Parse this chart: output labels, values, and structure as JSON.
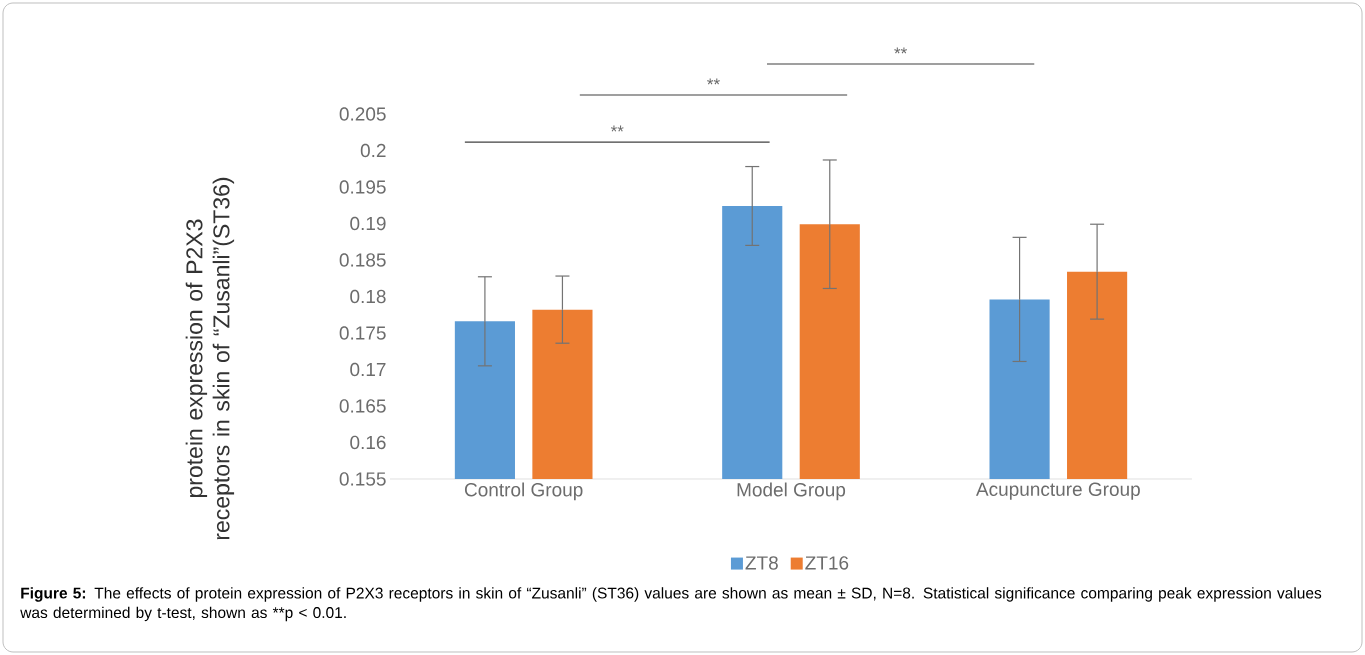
{
  "chart_data": {
    "type": "bar",
    "ylabel": "protein expression of P2X3 receptors in skin of “Zusanli”(ST36)",
    "categories": [
      "Control Group",
      "Model Group",
      "Acupuncture Group"
    ],
    "series": [
      {
        "name": "ZT8",
        "color": "#5b9bd5",
        "values": [
          0.1766,
          0.1924,
          0.1796
        ],
        "errors": [
          0.0061,
          0.0054,
          0.0085
        ]
      },
      {
        "name": "ZT16",
        "color": "#ed7d31",
        "values": [
          0.1782,
          0.1899,
          0.1834
        ],
        "errors": [
          0.0046,
          0.0088,
          0.0065
        ]
      }
    ],
    "ylim": [
      0.155,
      0.205
    ],
    "yticks": [
      0.155,
      0.16,
      0.165,
      0.17,
      0.175,
      0.18,
      0.185,
      0.19,
      0.195,
      0.2,
      0.205
    ],
    "legend": "bottom",
    "annotations": [
      "**",
      "**",
      "**",
      "Figure 5:",
      "The effects of protein expression of P2X3 receptors in skin of “Zusanli” (ST36) values are shown as mean ± SD, N=8. Statistical significance comparing peak expression values was determined by t-test, shown as **p < 0.01."
    ]
  }
}
